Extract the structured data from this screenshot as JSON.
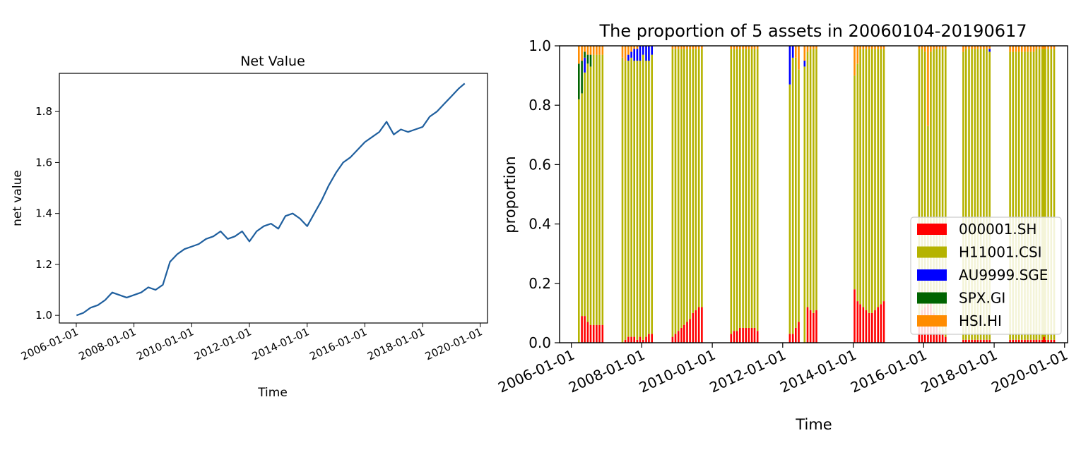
{
  "chart_data": [
    {
      "type": "line",
      "title": "Net Value",
      "xlabel": "Time",
      "ylabel": "net value",
      "x_tick_labels": [
        "2006-01-01",
        "2008-01-01",
        "2010-01-01",
        "2012-01-01",
        "2014-01-01",
        "2016-01-01",
        "2018-01-01",
        "2020-01-01"
      ],
      "y_tick_labels": [
        "1.0",
        "1.2",
        "1.4",
        "1.6",
        "1.8"
      ],
      "ylim": [
        0.97,
        1.95
      ],
      "xlim": [
        "2005-06-01",
        "2020-04-01"
      ],
      "grid": false,
      "color": "#1f5f9e",
      "series": [
        {
          "x": [
            "2006-01-04",
            "2006-04-01",
            "2006-07-01",
            "2006-10-01",
            "2007-01-01",
            "2007-04-01",
            "2007-07-01",
            "2007-10-01",
            "2008-01-01",
            "2008-04-01",
            "2008-07-01",
            "2008-10-01",
            "2009-01-01",
            "2009-04-01",
            "2009-07-01",
            "2009-10-01",
            "2010-01-01",
            "2010-04-01",
            "2010-07-01",
            "2010-10-01",
            "2011-01-01",
            "2011-04-01",
            "2011-07-01",
            "2011-10-01",
            "2012-01-01",
            "2012-04-01",
            "2012-07-01",
            "2012-10-01",
            "2013-01-01",
            "2013-04-01",
            "2013-07-01",
            "2013-10-01",
            "2014-01-01",
            "2014-04-01",
            "2014-07-01",
            "2014-10-01",
            "2015-01-01",
            "2015-04-01",
            "2015-07-01",
            "2015-10-01",
            "2016-01-01",
            "2016-04-01",
            "2016-07-01",
            "2016-10-01",
            "2017-01-01",
            "2017-04-01",
            "2017-07-01",
            "2017-10-01",
            "2018-01-01",
            "2018-04-01",
            "2018-07-01",
            "2018-10-01",
            "2019-01-01",
            "2019-04-01",
            "2019-06-17"
          ],
          "values": [
            1.0,
            1.01,
            1.03,
            1.04,
            1.06,
            1.09,
            1.08,
            1.07,
            1.08,
            1.09,
            1.11,
            1.1,
            1.12,
            1.21,
            1.24,
            1.26,
            1.27,
            1.28,
            1.3,
            1.31,
            1.33,
            1.3,
            1.31,
            1.33,
            1.29,
            1.33,
            1.35,
            1.36,
            1.34,
            1.39,
            1.4,
            1.38,
            1.35,
            1.4,
            1.45,
            1.51,
            1.56,
            1.6,
            1.62,
            1.65,
            1.68,
            1.7,
            1.72,
            1.76,
            1.71,
            1.73,
            1.72,
            1.73,
            1.74,
            1.78,
            1.8,
            1.83,
            1.86,
            1.89,
            1.91
          ]
        }
      ]
    },
    {
      "type": "bar",
      "stacked": true,
      "title": "The proportion of 5 assets in 20060104-20190617",
      "xlabel": "Time",
      "ylabel": "proportion",
      "x_tick_labels": [
        "2006-01-01",
        "2008-01-01",
        "2010-01-01",
        "2012-01-01",
        "2014-01-01",
        "2016-01-01",
        "2018-01-01",
        "2020-01-01"
      ],
      "y_tick_labels": [
        "0.0",
        "0.2",
        "0.4",
        "0.6",
        "0.8",
        "1.0"
      ],
      "ylim": [
        0,
        1.0
      ],
      "xlim": [
        "2005-09-01",
        "2020-02-01"
      ],
      "legend_position": "lower right",
      "series": [
        {
          "name": "000001.SH",
          "color": "#ff0000"
        },
        {
          "name": "H11001.CSI",
          "color": "#b5b300"
        },
        {
          "name": "AU9999.SGE",
          "color": "#0000ff"
        },
        {
          "name": "SPX.GI",
          "color": "#006400"
        },
        {
          "name": "HSI.HI",
          "color": "#ff8c00"
        }
      ],
      "segments": [
        {
          "start": "2006-03-20",
          "months": [
            [
              0.0,
              0.82,
              0.0,
              0.12,
              0.06
            ],
            [
              0.09,
              0.75,
              0.0,
              0.11,
              0.05
            ],
            [
              0.09,
              0.82,
              0.05,
              0.02,
              0.02
            ],
            [
              0.07,
              0.87,
              0.0,
              0.03,
              0.03
            ],
            [
              0.06,
              0.87,
              0.0,
              0.04,
              0.03
            ],
            [
              0.06,
              0.91,
              0.0,
              0.0,
              0.03
            ],
            [
              0.06,
              0.91,
              0.0,
              0.0,
              0.03
            ],
            [
              0.06,
              0.91,
              0.0,
              0.0,
              0.03
            ],
            [
              0.06,
              0.91,
              0.0,
              0.0,
              0.03
            ]
          ]
        },
        {
          "start": "2007-06-15",
          "months": [
            [
              0.0,
              0.96,
              0.0,
              0.0,
              0.04
            ],
            [
              0.01,
              0.94,
              0.0,
              0.0,
              0.05
            ],
            [
              0.02,
              0.93,
              0.02,
              0.0,
              0.03
            ],
            [
              0.02,
              0.94,
              0.02,
              0.0,
              0.02
            ],
            [
              0.02,
              0.93,
              0.04,
              0.0,
              0.01
            ],
            [
              0.01,
              0.94,
              0.04,
              0.0,
              0.01
            ],
            [
              0.02,
              0.93,
              0.05,
              0.0,
              0.0
            ],
            [
              0.01,
              0.96,
              0.03,
              0.0,
              0.0
            ],
            [
              0.02,
              0.93,
              0.05,
              0.0,
              0.0
            ],
            [
              0.03,
              0.92,
              0.05,
              0.0,
              0.0
            ],
            [
              0.03,
              0.94,
              0.03,
              0.0,
              0.0
            ]
          ]
        },
        {
          "start": "2008-11-15",
          "months": [
            [
              0.02,
              0.97,
              0.0,
              0.0,
              0.01
            ],
            [
              0.03,
              0.96,
              0.0,
              0.0,
              0.01
            ],
            [
              0.04,
              0.95,
              0.0,
              0.0,
              0.01
            ],
            [
              0.05,
              0.94,
              0.0,
              0.0,
              0.01
            ],
            [
              0.06,
              0.93,
              0.0,
              0.0,
              0.01
            ],
            [
              0.07,
              0.92,
              0.0,
              0.0,
              0.01
            ],
            [
              0.08,
              0.91,
              0.0,
              0.0,
              0.01
            ],
            [
              0.1,
              0.89,
              0.0,
              0.0,
              0.01
            ],
            [
              0.11,
              0.88,
              0.0,
              0.0,
              0.01
            ],
            [
              0.12,
              0.87,
              0.0,
              0.0,
              0.01
            ],
            [
              0.12,
              0.87,
              0.0,
              0.0,
              0.01
            ]
          ]
        },
        {
          "start": "2010-07-15",
          "months": [
            [
              0.03,
              0.96,
              0.0,
              0.0,
              0.01
            ],
            [
              0.04,
              0.95,
              0.0,
              0.0,
              0.01
            ],
            [
              0.04,
              0.95,
              0.0,
              0.0,
              0.01
            ],
            [
              0.05,
              0.94,
              0.0,
              0.0,
              0.01
            ],
            [
              0.05,
              0.94,
              0.0,
              0.0,
              0.01
            ],
            [
              0.05,
              0.94,
              0.0,
              0.0,
              0.01
            ],
            [
              0.05,
              0.94,
              0.0,
              0.0,
              0.01
            ],
            [
              0.05,
              0.94,
              0.0,
              0.0,
              0.01
            ],
            [
              0.05,
              0.94,
              0.0,
              0.0,
              0.01
            ],
            [
              0.04,
              0.95,
              0.0,
              0.0,
              0.01
            ]
          ]
        },
        {
          "start": "2012-03-15",
          "months": [
            [
              0.03,
              0.84,
              0.13,
              0.0,
              0.0
            ],
            [
              0.03,
              0.93,
              0.04,
              0.0,
              0.0
            ],
            [
              0.05,
              0.91,
              0.0,
              0.0,
              0.04
            ],
            [
              0.07,
              0.85,
              0.0,
              0.0,
              0.08
            ],
            [
              0.0,
              0.0,
              0.0,
              0.0,
              0.0
            ],
            [
              0.0,
              0.93,
              0.02,
              0.0,
              0.05
            ],
            [
              0.12,
              0.86,
              0.0,
              0.0,
              0.02
            ],
            [
              0.11,
              0.88,
              0.0,
              0.0,
              0.01
            ],
            [
              0.1,
              0.89,
              0.0,
              0.0,
              0.01
            ],
            [
              0.11,
              0.88,
              0.0,
              0.0,
              0.01
            ]
          ]
        },
        {
          "start": "2014-01-15",
          "months": [
            [
              0.18,
              0.72,
              0.0,
              0.0,
              0.1
            ],
            [
              0.14,
              0.8,
              0.0,
              0.0,
              0.06
            ],
            [
              0.13,
              0.86,
              0.0,
              0.0,
              0.01
            ],
            [
              0.12,
              0.87,
              0.0,
              0.0,
              0.01
            ],
            [
              0.11,
              0.88,
              0.0,
              0.0,
              0.01
            ],
            [
              0.1,
              0.89,
              0.0,
              0.0,
              0.01
            ],
            [
              0.1,
              0.89,
              0.0,
              0.0,
              0.01
            ],
            [
              0.11,
              0.88,
              0.0,
              0.0,
              0.01
            ],
            [
              0.12,
              0.87,
              0.0,
              0.0,
              0.01
            ],
            [
              0.13,
              0.86,
              0.0,
              0.0,
              0.01
            ],
            [
              0.14,
              0.85,
              0.0,
              0.0,
              0.01
            ]
          ]
        },
        {
          "start": "2015-11-15",
          "months": [
            [
              0.09,
              0.9,
              0.0,
              0.0,
              0.01
            ],
            [
              0.11,
              0.88,
              0.0,
              0.0,
              0.01
            ],
            [
              0.12,
              0.86,
              0.0,
              0.0,
              0.02
            ],
            [
              0.13,
              0.6,
              0.0,
              0.0,
              0.27
            ],
            [
              0.14,
              0.84,
              0.0,
              0.0,
              0.02
            ],
            [
              0.1,
              0.89,
              0.0,
              0.0,
              0.01
            ],
            [
              0.06,
              0.93,
              0.0,
              0.0,
              0.01
            ],
            [
              0.04,
              0.95,
              0.0,
              0.0,
              0.01
            ],
            [
              0.03,
              0.96,
              0.0,
              0.0,
              0.01
            ],
            [
              0.02,
              0.97,
              0.0,
              0.0,
              0.01
            ]
          ]
        },
        {
          "start": "2017-02-15",
          "months": [
            [
              0.01,
              0.97,
              0.0,
              0.0,
              0.02
            ],
            [
              0.01,
              0.98,
              0.0,
              0.0,
              0.01
            ],
            [
              0.01,
              0.98,
              0.0,
              0.0,
              0.01
            ],
            [
              0.01,
              0.98,
              0.0,
              0.0,
              0.01
            ],
            [
              0.01,
              0.98,
              0.0,
              0.0,
              0.01
            ],
            [
              0.01,
              0.98,
              0.0,
              0.0,
              0.01
            ],
            [
              0.01,
              0.98,
              0.0,
              0.0,
              0.01
            ],
            [
              0.01,
              0.98,
              0.0,
              0.0,
              0.01
            ],
            [
              0.01,
              0.98,
              0.0,
              0.0,
              0.01
            ],
            [
              0.01,
              0.97,
              0.01,
              0.0,
              0.01
            ]
          ]
        },
        {
          "start": "2018-06-15",
          "months": [
            [
              0.01,
              0.97,
              0.0,
              0.0,
              0.02
            ],
            [
              0.01,
              0.97,
              0.0,
              0.0,
              0.02
            ],
            [
              0.01,
              0.97,
              0.0,
              0.0,
              0.02
            ],
            [
              0.01,
              0.97,
              0.0,
              0.0,
              0.02
            ],
            [
              0.01,
              0.97,
              0.0,
              0.0,
              0.02
            ],
            [
              0.01,
              0.97,
              0.0,
              0.0,
              0.02
            ],
            [
              0.01,
              0.97,
              0.0,
              0.0,
              0.02
            ],
            [
              0.01,
              0.97,
              0.0,
              0.0,
              0.02
            ],
            [
              0.01,
              0.97,
              0.0,
              0.0,
              0.02
            ],
            [
              0.01,
              0.97,
              0.0,
              0.0,
              0.02
            ]
          ]
        },
        {
          "start": "2019-03-15",
          "months": [
            [
              0.01,
              0.98,
              0.0,
              0.0,
              0.01
            ],
            [
              0.01,
              0.98,
              0.0,
              0.0,
              0.01
            ],
            [
              0.01,
              0.98,
              0.0,
              0.0,
              0.01
            ],
            [
              0.01,
              0.98,
              0.0,
              0.0,
              0.01
            ],
            [
              0.01,
              0.98,
              0.0,
              0.0,
              0.01
            ],
            [
              0.01,
              0.98,
              0.0,
              0.0,
              0.01
            ],
            [
              0.01,
              0.98,
              0.0,
              0.0,
              0.01
            ]
          ]
        },
        {
          "start": "2019-06-01",
          "months": [
            [
              0.02,
              0.97,
              0.0,
              0.0,
              0.01
            ]
          ]
        }
      ]
    }
  ]
}
